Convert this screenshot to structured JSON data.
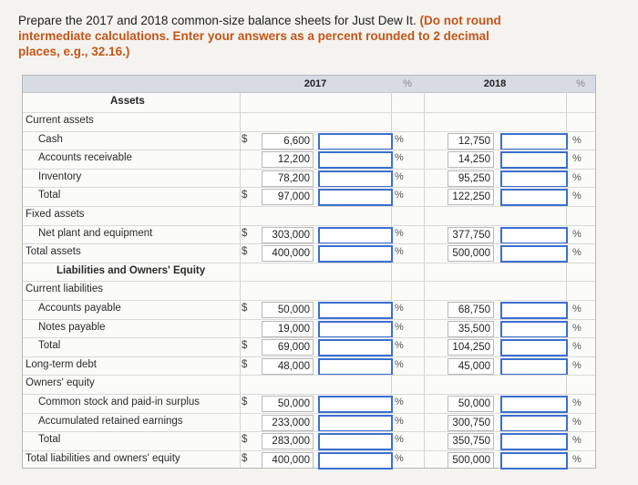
{
  "prompt": {
    "text": "Prepare the 2017 and 2018 common-size balance sheets for Just Dew It.",
    "hint": "(Do not round intermediate calculations. Enter your answers as a percent rounded to 2 decimal places, e.g., 32.16.)"
  },
  "headers": {
    "y2017": "2017",
    "pct": "%",
    "y2018": "2018",
    "pct2": "%"
  },
  "assets_title": "Assets",
  "rows": [
    {
      "label": "Current assets"
    },
    {
      "label": "Cash",
      "dollar": "$",
      "v2017": "6,600",
      "v2018": "12,750",
      "pct": "%",
      "pct2": "%"
    },
    {
      "label": "Accounts receivable",
      "v2017": "12,200",
      "v2018": "14,250",
      "pct": "%",
      "pct2": "%"
    },
    {
      "label": "Inventory",
      "v2017": "78,200",
      "v2018": "95,250",
      "pct": "%",
      "pct2": "%"
    },
    {
      "label": "Total",
      "dollar": "$",
      "v2017": "97,000",
      "v2018": "122,250",
      "pct": "%",
      "pct2": "%"
    },
    {
      "label": "Fixed assets"
    },
    {
      "label": "Net plant and equipment",
      "dollar": "$",
      "v2017": "303,000",
      "v2018": "377,750",
      "pct": "%",
      "pct2": "%"
    },
    {
      "label": "Total assets",
      "dollar": "$",
      "v2017": "400,000",
      "v2018": "500,000",
      "pct": "%",
      "pct2": "%"
    },
    {
      "label": "Liabilities and Owners' Equity"
    },
    {
      "label": "Current liabilities"
    },
    {
      "label": "Accounts payable",
      "dollar": "$",
      "v2017": "50,000",
      "v2018": "68,750",
      "pct": "%",
      "pct2": "%"
    },
    {
      "label": "Notes payable",
      "v2017": "19,000",
      "v2018": "35,500",
      "pct": "%",
      "pct2": "%"
    },
    {
      "label": "Total",
      "dollar": "$",
      "v2017": "69,000",
      "v2018": "104,250",
      "pct": "%",
      "pct2": "%"
    },
    {
      "label": "Long-term debt",
      "dollar": "$",
      "v2017": "48,000",
      "v2018": "45,000",
      "pct": "%",
      "pct2": "%"
    },
    {
      "label": "Owners' equity"
    },
    {
      "label": "Common stock and paid-in surplus",
      "dollar": "$",
      "v2017": "50,000",
      "v2018": "50,000",
      "pct": "%",
      "pct2": "%"
    },
    {
      "label": "Accumulated retained earnings",
      "v2017": "233,000",
      "v2018": "300,750",
      "pct": "%",
      "pct2": "%"
    },
    {
      "label": "Total",
      "dollar": "$",
      "v2017": "283,000",
      "v2018": "350,750",
      "pct": "%",
      "pct2": "%"
    },
    {
      "label": "Total liabilities and owners' equity",
      "dollar": "$",
      "v2017": "400,000",
      "v2018": "500,000",
      "pct": "%",
      "pct2": "%"
    }
  ]
}
